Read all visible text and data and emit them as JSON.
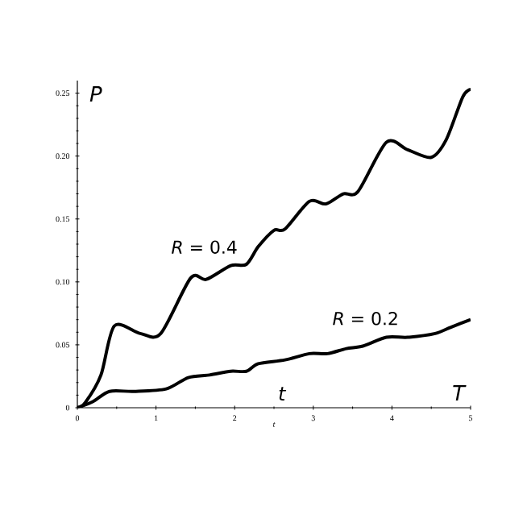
{
  "chart_data": {
    "type": "line",
    "xlabel": "t",
    "ylabel": "P",
    "xlim": [
      0,
      5
    ],
    "ylim": [
      0,
      0.26
    ],
    "xticks": [
      0,
      1,
      2,
      3,
      4,
      5
    ],
    "yticks": [
      0,
      0.05,
      {
        "value": 0.1,
        "label": "0.10"
      },
      0.15,
      {
        "value": 0.2,
        "label": "0.20"
      },
      0.25
    ],
    "grid": false,
    "legend": false,
    "marker": "none",
    "line_style": "solid",
    "annotations": [
      "t",
      "T"
    ],
    "series": [
      {
        "name": "*R* = 0.4",
        "color": "#000000",
        "x": [
          0,
          0.1,
          0.3,
          0.47,
          0.8,
          1.06,
          1.44,
          1.64,
          1.95,
          2.15,
          2.3,
          2.5,
          2.64,
          2.95,
          3.16,
          3.38,
          3.57,
          3.93,
          4.2,
          4.5,
          4.69,
          4.9,
          5
        ],
        "values": [
          0,
          0.004,
          0.026,
          0.065,
          0.059,
          0.059,
          0.103,
          0.102,
          0.113,
          0.114,
          0.128,
          0.141,
          0.142,
          0.164,
          0.162,
          0.17,
          0.172,
          0.211,
          0.205,
          0.199,
          0.213,
          0.247,
          0.253
        ]
      },
      {
        "name": "*R* = 0.2",
        "color": "#000000",
        "x": [
          0,
          0.2,
          0.41,
          0.72,
          1.13,
          1.41,
          1.68,
          1.95,
          2.15,
          2.3,
          2.64,
          2.95,
          3.18,
          3.42,
          3.63,
          3.93,
          4.2,
          4.55,
          4.75,
          5
        ],
        "values": [
          0,
          0.005,
          0.013,
          0.013,
          0.015,
          0.024,
          0.026,
          0.029,
          0.029,
          0.035,
          0.038,
          0.043,
          0.043,
          0.047,
          0.049,
          0.056,
          0.056,
          0.059,
          0.064,
          0.07
        ]
      }
    ]
  }
}
